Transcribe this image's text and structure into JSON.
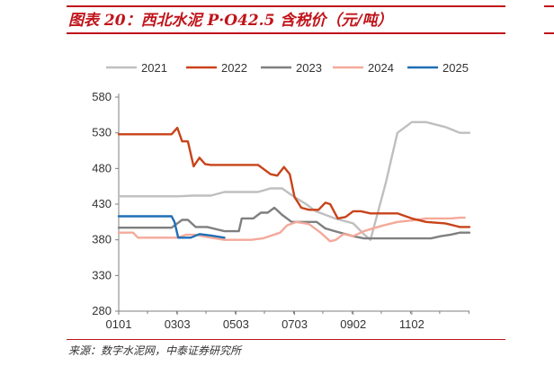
{
  "figure": {
    "title": "图表 20：西北水泥 P·O42.5 含税价（元/吨）",
    "source": "来源：数字水泥网，中泰证券研究所"
  },
  "chart_data": {
    "type": "line",
    "title": "",
    "xlabel": "",
    "ylabel": "",
    "ylim": [
      280,
      580
    ],
    "yticks": [
      280,
      330,
      380,
      430,
      480,
      530,
      580
    ],
    "xticks": [
      "0101",
      "0303",
      "0503",
      "0703",
      "0902",
      "1102"
    ],
    "xticks_day": [
      0,
      61,
      122,
      183,
      244,
      305
    ],
    "xlim_day": [
      0,
      365
    ],
    "grid": false,
    "legend_position": "top",
    "series": [
      {
        "name": "2021",
        "color": "#bfbfbf",
        "day": [
          0,
          40,
          61,
          78,
          96,
          110,
          128,
          145,
          158,
          170,
          183,
          195,
          205,
          225,
          244,
          255,
          262,
          270,
          278,
          290,
          305,
          320,
          340,
          355,
          365
        ],
        "values": [
          441,
          441,
          441,
          442,
          442,
          447,
          447,
          447,
          452,
          452,
          440,
          430,
          420,
          410,
          403,
          388,
          380,
          420,
          460,
          530,
          545,
          545,
          538,
          530,
          530
        ]
      },
      {
        "name": "2022",
        "color": "#c8431a",
        "day": [
          0,
          30,
          55,
          61,
          66,
          72,
          78,
          84,
          90,
          96,
          110,
          128,
          145,
          158,
          165,
          172,
          178,
          183,
          190,
          198,
          208,
          215,
          220,
          228,
          236,
          244,
          252,
          262,
          272,
          290,
          305,
          320,
          340,
          355,
          365
        ],
        "values": [
          528,
          528,
          528,
          537,
          518,
          518,
          483,
          495,
          486,
          485,
          485,
          485,
          485,
          472,
          470,
          482,
          472,
          440,
          425,
          422,
          422,
          432,
          430,
          410,
          412,
          420,
          420,
          417,
          417,
          417,
          410,
          405,
          403,
          398,
          398
        ]
      },
      {
        "name": "2023",
        "color": "#7f7f7f",
        "day": [
          0,
          30,
          55,
          66,
          72,
          80,
          92,
          110,
          125,
          128,
          140,
          148,
          155,
          162,
          170,
          180,
          188,
          196,
          206,
          215,
          225,
          236,
          244,
          255,
          265,
          280,
          300,
          325,
          335,
          345,
          355,
          365
        ],
        "values": [
          397,
          397,
          397,
          408,
          408,
          398,
          398,
          392,
          392,
          410,
          410,
          418,
          418,
          425,
          415,
          405,
          405,
          405,
          405,
          396,
          392,
          388,
          385,
          382,
          382,
          382,
          382,
          382,
          385,
          387,
          390,
          390
        ],
        "note": ""
      },
      {
        "name": "2024",
        "color": "#f4a99a",
        "day": [
          0,
          15,
          20,
          61,
          70,
          80,
          96,
          110,
          128,
          138,
          150,
          168,
          175,
          185,
          198,
          210,
          220,
          226,
          234,
          244,
          255,
          262,
          275,
          290,
          305,
          320,
          330,
          345,
          355,
          360
        ],
        "values": [
          390,
          390,
          383,
          383,
          387,
          387,
          383,
          380,
          380,
          380,
          382,
          390,
          400,
          405,
          402,
          390,
          378,
          380,
          388,
          385,
          392,
          395,
          400,
          405,
          407,
          410,
          410,
          410,
          411,
          411
        ]
      },
      {
        "name": "2025",
        "color": "#1f6fb5",
        "day": [
          0,
          38,
          55,
          58,
          62,
          75,
          84,
          96,
          110
        ],
        "values": [
          413,
          413,
          413,
          405,
          383,
          383,
          388,
          386,
          383
        ]
      }
    ]
  }
}
